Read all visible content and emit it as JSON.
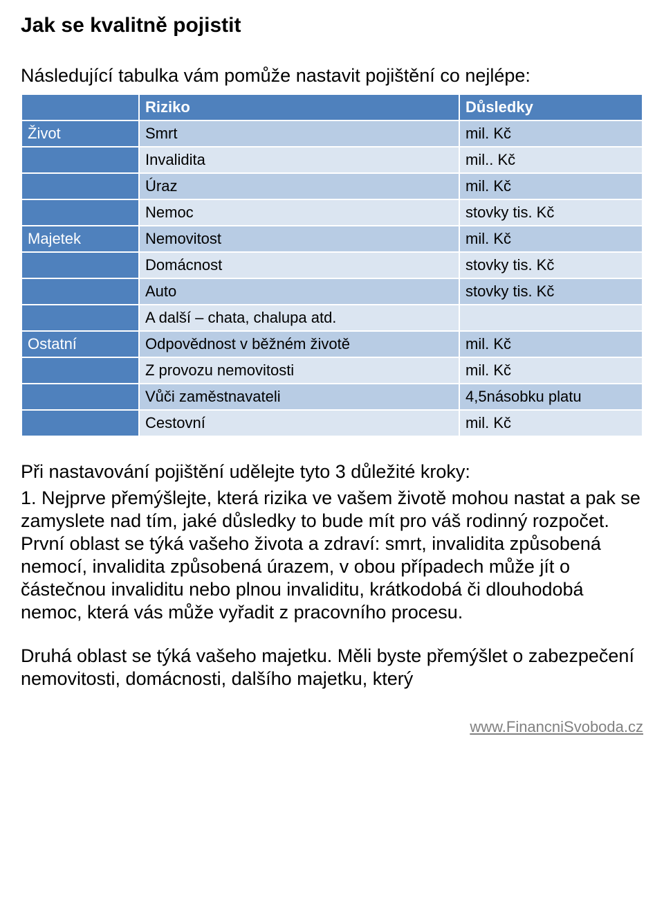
{
  "title": "Jak se kvalitně pojistit",
  "intro": "Následující tabulka vám pomůže nastavit pojištění co nejlépe:",
  "table": {
    "header_bg": "#4f81bd",
    "header_fg": "#ffffff",
    "cat_bg": "#4f81bd",
    "cat_fg": "#ffffff",
    "row_alt_a": "#b8cce4",
    "row_alt_b": "#dbe5f1",
    "text_color": "#000000",
    "columns": [
      "",
      "Riziko",
      "Důsledky"
    ],
    "groups": [
      {
        "category": "Život",
        "rows": [
          {
            "risk": "Smrt",
            "cons": "mil. Kč"
          },
          {
            "risk": "Invalidita",
            "cons": "mil.. Kč"
          },
          {
            "risk": "Úraz",
            "cons": "mil. Kč"
          },
          {
            "risk": "Nemoc",
            "cons": "stovky tis. Kč"
          }
        ]
      },
      {
        "category": "Majetek",
        "rows": [
          {
            "risk": "Nemovitost",
            "cons": "mil. Kč"
          },
          {
            "risk": "Domácnost",
            "cons": "stovky tis. Kč"
          },
          {
            "risk": "Auto",
            "cons": "stovky tis. Kč"
          },
          {
            "risk": "A další – chata, chalupa atd.",
            "cons": ""
          }
        ]
      },
      {
        "category": "Ostatní",
        "rows": [
          {
            "risk": "Odpovědnost v běžném životě",
            "cons": "mil. Kč"
          },
          {
            "risk": "Z provozu nemovitosti",
            "cons": "mil. Kč"
          },
          {
            "risk": "Vůči zaměstnavateli",
            "cons": "4,5násobku platu"
          },
          {
            "risk": "Cestovní",
            "cons": "mil. Kč"
          }
        ]
      }
    ]
  },
  "steps_intro": "Při nastavování pojištění udělejte tyto 3 důležité kroky:",
  "para1": "1. Nejprve přemýšlejte, která rizika ve vašem životě mohou nastat a pak se zamyslete nad tím, jaké důsledky to bude mít pro váš rodinný rozpočet.",
  "para2": "První oblast se týká vašeho života a zdraví: smrt, invalidita způsobená nemocí, invalidita způsobená úrazem, v obou případech může jít o částečnou invaliditu nebo plnou invaliditu, krátkodobá či dlouhodobá nemoc, která vás může vyřadit z pracovního procesu.",
  "para3": "Druhá oblast se týká vašeho majetku. Měli byste přemýšlet o zabezpečení nemovitosti, domácnosti, dalšího majetku, který",
  "footer_link": "www.FinancniSvoboda.cz"
}
